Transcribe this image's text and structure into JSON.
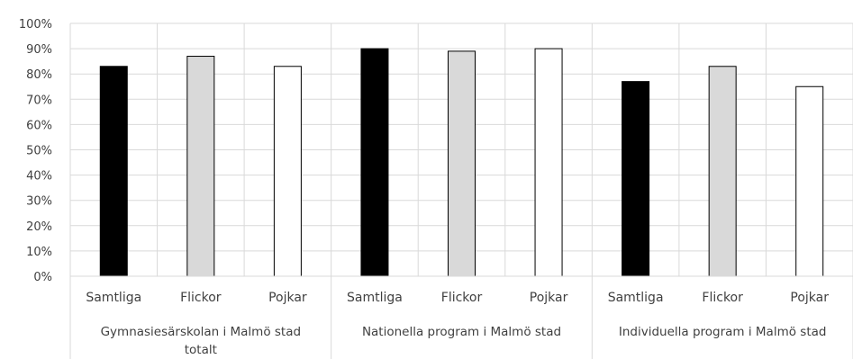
{
  "chart_data": {
    "type": "bar",
    "title": "",
    "xlabel": "",
    "ylabel": "",
    "ylim": [
      0,
      100
    ],
    "yticks": [
      "0%",
      "10%",
      "20%",
      "30%",
      "40%",
      "50%",
      "60%",
      "70%",
      "80%",
      "90%",
      "100%"
    ],
    "grid": true,
    "groups": [
      {
        "label_lines": [
          "Gymnasiesärskolan i Malmö stad",
          "totalt"
        ],
        "categories": [
          "Samtliga",
          "Flickor",
          "Pojkar"
        ],
        "values": [
          83,
          87,
          83
        ]
      },
      {
        "label_lines": [
          "Nationella program i Malmö stad"
        ],
        "categories": [
          "Samtliga",
          "Flickor",
          "Pojkar"
        ],
        "values": [
          90,
          89,
          90
        ]
      },
      {
        "label_lines": [
          "Individuella program i Malmö stad"
        ],
        "categories": [
          "Samtliga",
          "Flickor",
          "Pojkar"
        ],
        "values": [
          77,
          83,
          75
        ]
      }
    ],
    "colors": {
      "Samtliga": "#000000",
      "Flickor": "#d9d9d9",
      "Pojkar": "#ffffff",
      "bar_border": "#000000",
      "grid": "#d9d9d9",
      "text": "#404040"
    }
  }
}
